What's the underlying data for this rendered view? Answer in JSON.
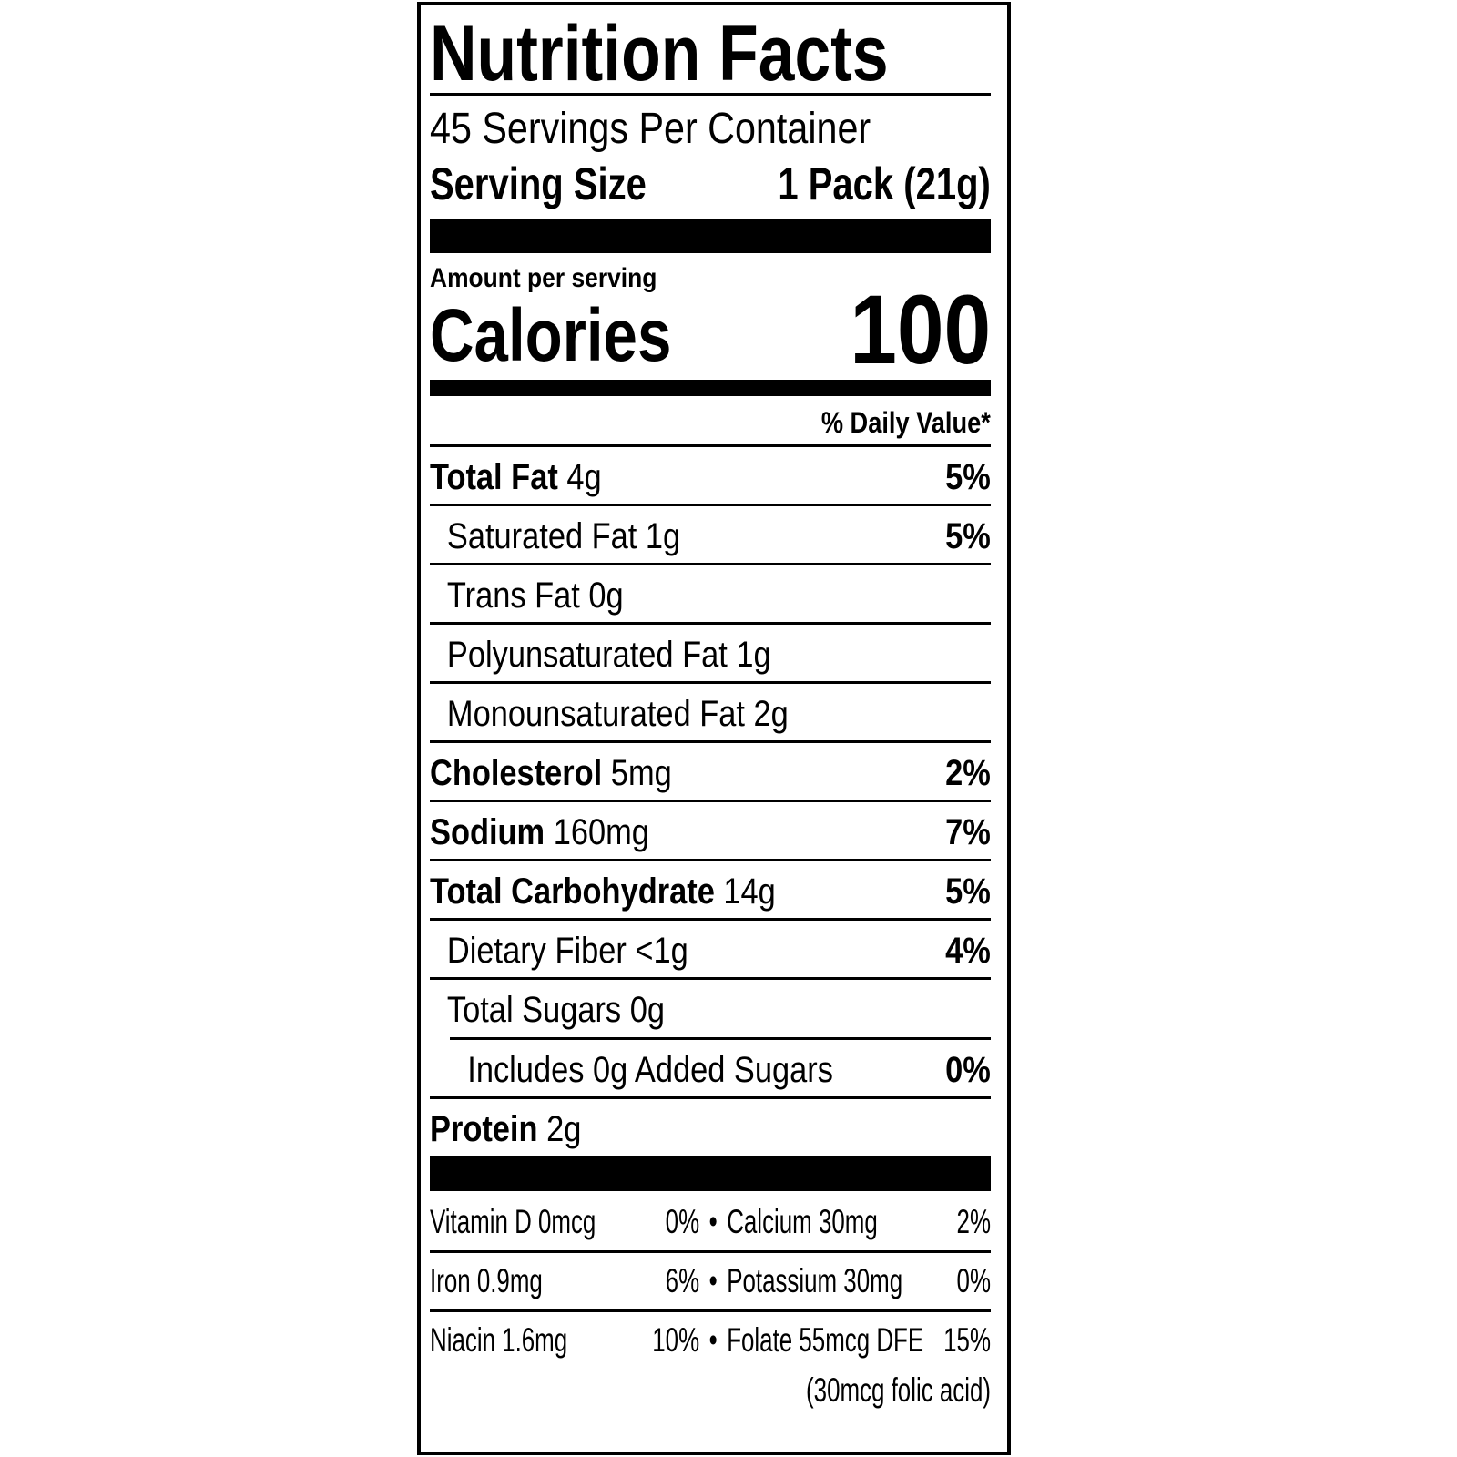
{
  "title": "Nutrition Facts",
  "servings_per_container": "45 Servings Per Container",
  "serving_size_label": "Serving Size",
  "serving_size_value": "1 Pack (21g)",
  "amount_per_serving": "Amount per serving",
  "calories_label": "Calories",
  "calories_value": "100",
  "daily_value_header": "% Daily Value*",
  "nutrients": [
    {
      "name": "Total Fat",
      "amount": "4g",
      "dv": "5%"
    },
    {
      "name": "Saturated Fat",
      "amount": "1g",
      "dv": "5%"
    },
    {
      "name": "Trans Fat",
      "amount": "0g",
      "dv": ""
    },
    {
      "name": "Polyunsaturated Fat",
      "amount": "1g",
      "dv": ""
    },
    {
      "name": "Monounsaturated Fat",
      "amount": "2g",
      "dv": ""
    },
    {
      "name": "Cholesterol",
      "amount": "5mg",
      "dv": "2%"
    },
    {
      "name": "Sodium",
      "amount": "160mg",
      "dv": "7%"
    },
    {
      "name": "Total Carbohydrate",
      "amount": "14g",
      "dv": "5%"
    },
    {
      "name": "Dietary Fiber",
      "amount": "<1g",
      "dv": "4%"
    },
    {
      "name": "Total Sugars",
      "amount": "0g",
      "dv": ""
    },
    {
      "name": "Includes 0g Added Sugars",
      "amount": "",
      "dv": "0%"
    },
    {
      "name": "Protein",
      "amount": "2g",
      "dv": ""
    }
  ],
  "vitamins": [
    {
      "left": "Vitamin D 0mcg",
      "left_dv": "0%",
      "right": "Calcium 30mg",
      "right_dv": "2%"
    },
    {
      "left": "Iron 0.9mg",
      "left_dv": "6%",
      "right": "Potassium 30mg",
      "right_dv": "0%"
    },
    {
      "left": "Niacin 1.6mg",
      "left_dv": "10%",
      "right": "Folate 55mcg DFE",
      "right_dv": "15%"
    }
  ],
  "folic_acid_note": "(30mcg folic acid)",
  "bullet": "•"
}
